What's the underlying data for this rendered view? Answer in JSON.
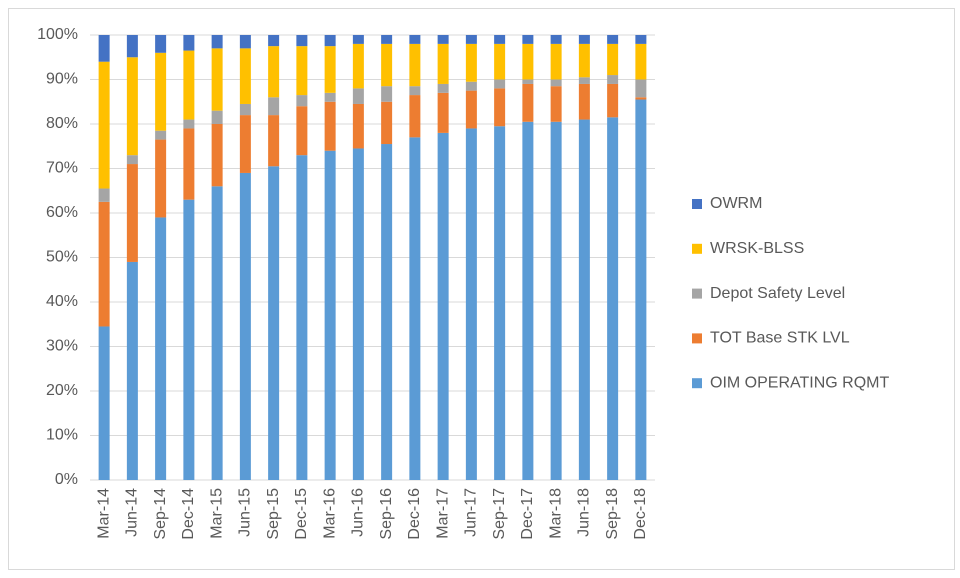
{
  "chart_data": {
    "type": "stacked_bar_100",
    "categories": [
      "Mar-14",
      "Jun-14",
      "Sep-14",
      "Dec-14",
      "Mar-15",
      "Jun-15",
      "Sep-15",
      "Dec-15",
      "Mar-16",
      "Jun-16",
      "Sep-16",
      "Dec-16",
      "Mar-17",
      "Jun-17",
      "Sep-17",
      "Dec-17",
      "Mar-18",
      "Jun-18",
      "Sep-18",
      "Dec-18"
    ],
    "series": [
      {
        "name": "OIM OPERATING RQMT",
        "color": "#5b9bd5",
        "values": [
          34.5,
          49,
          59,
          63,
          66,
          69,
          70.5,
          73,
          74,
          74.5,
          75.5,
          77,
          78,
          79,
          79.5,
          80.5,
          80.5,
          81,
          81.5,
          85.5
        ]
      },
      {
        "name": "TOT Base STK LVL",
        "color": "#ed7d31",
        "values": [
          28,
          22,
          17.5,
          16,
          14,
          13,
          11.5,
          11,
          11,
          10,
          9.5,
          9.5,
          9,
          8.5,
          8.5,
          8.5,
          8,
          8,
          7.5,
          0.5
        ]
      },
      {
        "name": "Depot Safety Level",
        "color": "#a5a5a5",
        "values": [
          3,
          2,
          2,
          2,
          3,
          2.5,
          4,
          2.5,
          2,
          3.5,
          3.5,
          2,
          2,
          2,
          2,
          1,
          1.5,
          1.5,
          2,
          4
        ]
      },
      {
        "name": "WRSK-BLSS",
        "color": "#ffc000",
        "values": [
          28.5,
          22,
          17.5,
          15.5,
          14,
          12.5,
          11.5,
          11,
          10.5,
          10,
          9.5,
          9.5,
          9,
          8.5,
          8,
          8,
          8,
          7.5,
          7,
          8
        ]
      },
      {
        "name": "OWRM",
        "color": "#4472c4",
        "values": [
          6,
          5,
          4,
          3.5,
          3,
          3,
          2.5,
          2.5,
          2.5,
          2,
          2,
          2,
          2,
          2,
          2,
          2,
          2,
          2,
          2,
          2
        ]
      }
    ],
    "ylim": [
      0,
      100
    ],
    "yticks": [
      {
        "value": 0,
        "label": "0%"
      },
      {
        "value": 10,
        "label": "10%"
      },
      {
        "value": 20,
        "label": "20%"
      },
      {
        "value": 30,
        "label": "30%"
      },
      {
        "value": 40,
        "label": "40%"
      },
      {
        "value": 50,
        "label": "50%"
      },
      {
        "value": 60,
        "label": "60%"
      },
      {
        "value": 70,
        "label": "70%"
      },
      {
        "value": 80,
        "label": "80%"
      },
      {
        "value": 90,
        "label": "90%"
      },
      {
        "value": 100,
        "label": "100%"
      }
    ],
    "grid": true,
    "legend": "right"
  }
}
